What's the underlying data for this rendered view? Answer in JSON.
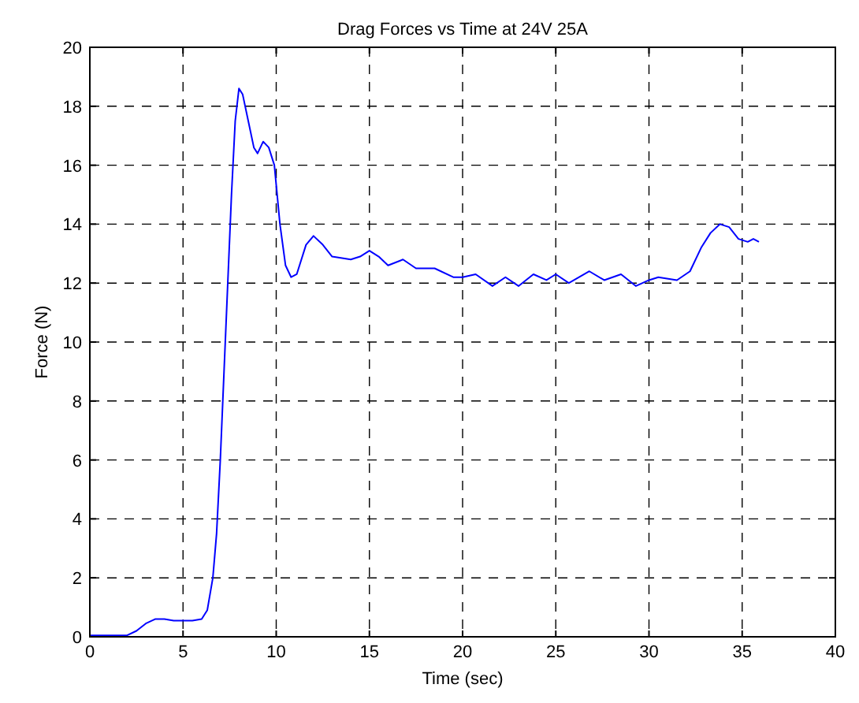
{
  "chart_data": {
    "type": "line",
    "title": "Drag Forces vs Time at 24V 25A",
    "xlabel": "Time (sec)",
    "ylabel": "Force (N)",
    "xlim": [
      0,
      40
    ],
    "xticks": [
      0,
      5,
      10,
      15,
      20,
      25,
      30,
      35,
      40
    ],
    "ylim": [
      0,
      20
    ],
    "yticks": [
      0,
      2,
      4,
      6,
      8,
      10,
      12,
      14,
      16,
      18,
      20
    ],
    "grid": true,
    "line_style": "solid",
    "marker": "none",
    "series": [
      {
        "color": "#0000ff",
        "x": [
          0,
          2,
          2.5,
          3,
          3.5,
          4,
          4.5,
          5,
          5.5,
          6,
          6.3,
          6.6,
          6.8,
          7,
          7.2,
          7.4,
          7.6,
          7.8,
          8,
          8.2,
          8.5,
          8.8,
          9,
          9.3,
          9.6,
          9.9,
          10.2,
          10.5,
          10.8,
          11.1,
          11.6,
          12,
          12.5,
          13,
          14,
          14.5,
          15,
          15.5,
          16,
          16.8,
          17.5,
          18.5,
          19.5,
          20,
          20.7,
          21.6,
          22.3,
          23,
          23.8,
          24.5,
          25,
          25.7,
          26.8,
          27.6,
          28.5,
          29.3,
          30,
          30.5,
          31.5,
          32.2,
          32.8,
          33.3,
          33.8,
          34.3,
          34.8,
          35.3,
          35.6,
          35.9
        ],
        "values": [
          0.05,
          0.05,
          0.2,
          0.45,
          0.6,
          0.6,
          0.55,
          0.55,
          0.55,
          0.6,
          0.9,
          2,
          3.5,
          6,
          9,
          12,
          15,
          17.5,
          18.6,
          18.4,
          17.5,
          16.6,
          16.4,
          16.8,
          16.6,
          16,
          14,
          12.6,
          12.2,
          12.3,
          13.3,
          13.6,
          13.3,
          12.9,
          12.8,
          12.9,
          13.1,
          12.9,
          12.6,
          12.8,
          12.5,
          12.5,
          12.2,
          12.2,
          12.3,
          11.9,
          12.2,
          11.9,
          12.3,
          12.1,
          12.3,
          12,
          12.4,
          12.1,
          12.3,
          11.9,
          12.1,
          12.2,
          12.1,
          12.4,
          13.2,
          13.7,
          14,
          13.9,
          13.5,
          13.4,
          13.5,
          13.4
        ]
      }
    ]
  }
}
